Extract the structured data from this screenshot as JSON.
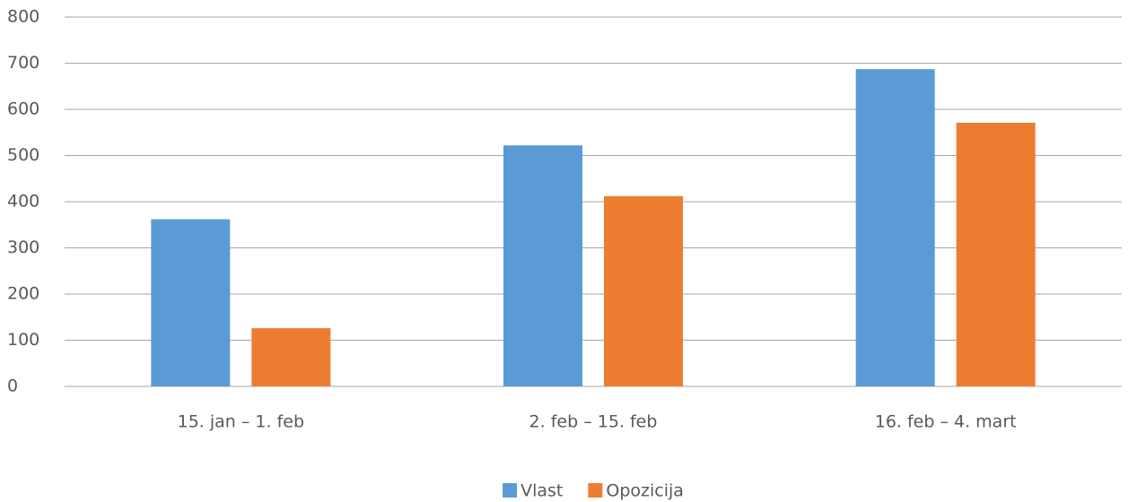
{
  "chart_data": {
    "type": "bar",
    "categories": [
      "15. jan – 1. feb",
      "2. feb – 15. feb",
      "16. feb – 4. mart"
    ],
    "series": [
      {
        "name": "Vlast",
        "color": "#5b9bd5",
        "values": [
          362,
          522,
          687
        ]
      },
      {
        "name": "Opozicija",
        "color": "#ed7d31",
        "values": [
          126,
          412,
          571
        ]
      }
    ],
    "ylim": [
      0,
      800
    ],
    "yticks": [
      0,
      100,
      200,
      300,
      400,
      500,
      600,
      700,
      800
    ],
    "grid": true,
    "legend": "bottom"
  }
}
